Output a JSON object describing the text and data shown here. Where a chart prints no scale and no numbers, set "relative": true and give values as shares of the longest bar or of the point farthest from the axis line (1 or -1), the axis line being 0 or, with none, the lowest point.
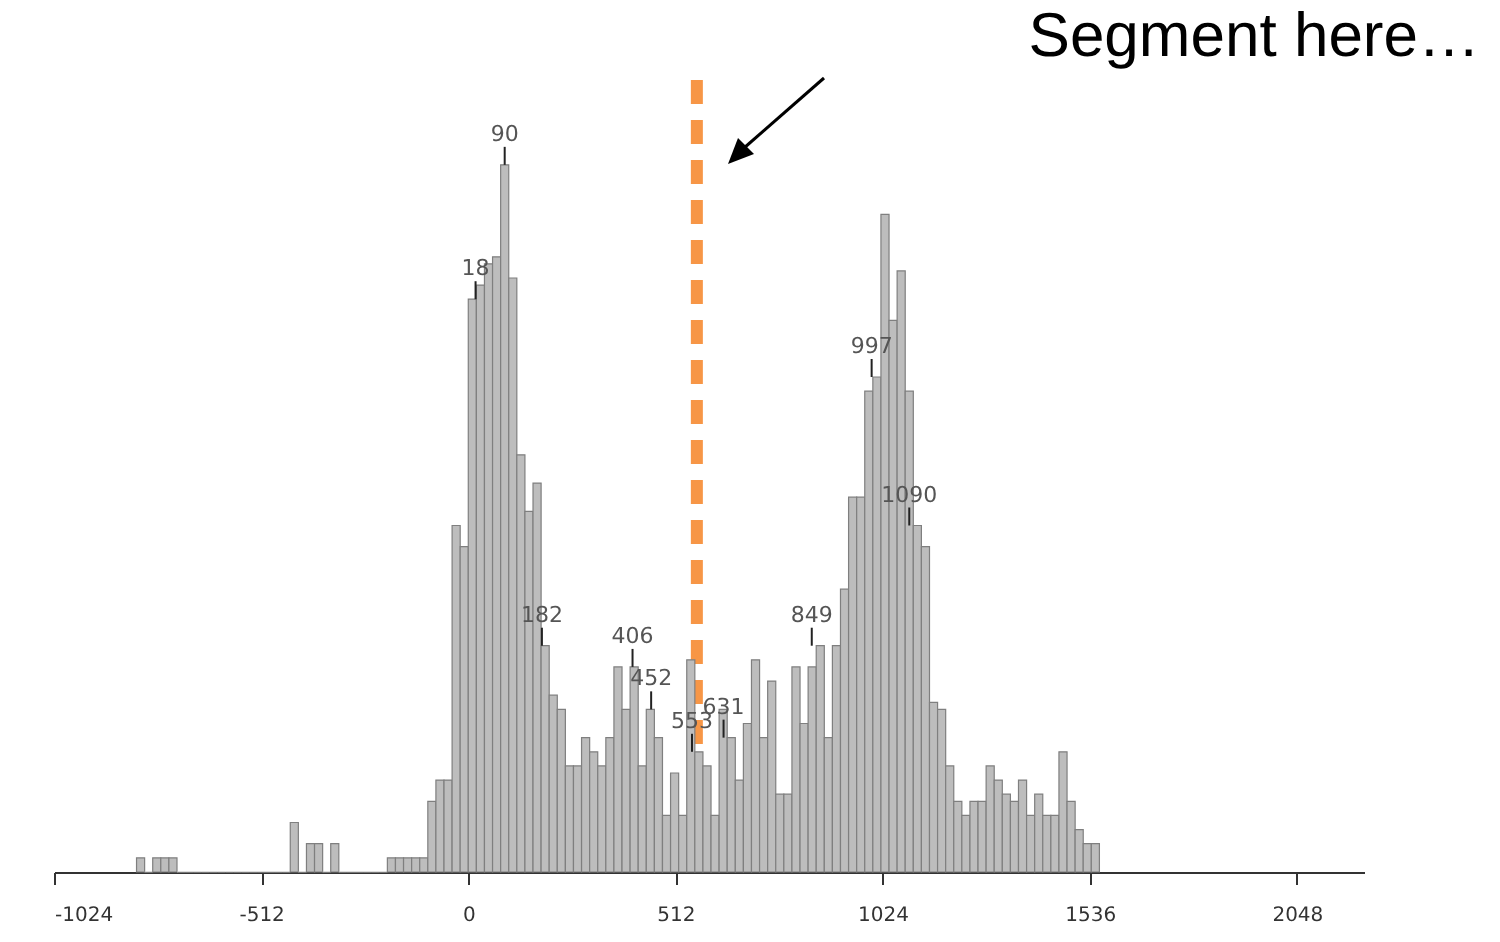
{
  "chart_data": {
    "type": "bar",
    "relative": true,
    "color": "#bdbdbd",
    "x": [
      -810,
      -790,
      -770,
      -750,
      -730,
      -710,
      -690,
      -670,
      -650,
      -630,
      -610,
      -590,
      -570,
      -550,
      -530,
      -510,
      -490,
      -470,
      -450,
      -430,
      -410,
      -390,
      -370,
      -350,
      -330,
      -310,
      -290,
      -270,
      -250,
      -230,
      -210,
      -190,
      -170,
      -150,
      -130,
      -110,
      -90,
      -70,
      -50,
      -30,
      -10,
      10,
      30,
      50,
      70,
      90,
      110,
      130,
      150,
      170,
      190,
      210,
      230,
      250,
      270,
      290,
      310,
      330,
      350,
      370,
      390,
      410,
      430,
      450,
      470,
      490,
      510,
      530,
      550,
      570,
      590,
      610,
      630,
      650,
      670,
      690,
      710,
      730,
      750,
      770,
      790,
      810,
      830,
      850,
      870,
      890,
      910,
      930,
      950,
      970,
      990,
      1010,
      1030,
      1050,
      1070,
      1090,
      1110,
      1130,
      1150,
      1170,
      1190,
      1210,
      1230,
      1250,
      1270,
      1290,
      1310,
      1330,
      1350,
      1370,
      1390,
      1410,
      1430,
      1450,
      1470,
      1490,
      1510,
      1530,
      1550
    ],
    "values": [
      0.02,
      0,
      0.02,
      0.02,
      0.02,
      0,
      0,
      0,
      0,
      0,
      0,
      0,
      0,
      0,
      0,
      0,
      0,
      0,
      0,
      0.07,
      0,
      0.04,
      0.04,
      0,
      0.04,
      0,
      0,
      0,
      0,
      0,
      0,
      0.02,
      0.02,
      0.02,
      0.02,
      0.02,
      0.1,
      0.13,
      0.13,
      0.49,
      0.46,
      0.81,
      0.83,
      0.86,
      0.87,
      1,
      0.84,
      0.59,
      0.51,
      0.55,
      0.32,
      0.25,
      0.23,
      0.15,
      0.15,
      0.19,
      0.17,
      0.15,
      0.19,
      0.29,
      0.23,
      0.29,
      0.15,
      0.23,
      0.19,
      0.08,
      0.14,
      0.08,
      0.3,
      0.17,
      0.15,
      0.08,
      0.23,
      0.19,
      0.13,
      0.21,
      0.3,
      0.19,
      0.27,
      0.11,
      0.11,
      0.29,
      0.21,
      0.29,
      0.32,
      0.19,
      0.32,
      0.4,
      0.53,
      0.53,
      0.68,
      0.7,
      0.93,
      0.78,
      0.85,
      0.68,
      0.49,
      0.46,
      0.24,
      0.23,
      0.15,
      0.1,
      0.08,
      0.1,
      0.1,
      0.15,
      0.13,
      0.11,
      0.1,
      0.13,
      0.08,
      0.11,
      0.08,
      0.08,
      0.17,
      0.1,
      0.06,
      0.04,
      0.04
    ],
    "xlim": [
      -1024,
      2214
    ],
    "xticks": [
      -1024,
      -512,
      0,
      512,
      1024,
      1536,
      2048
    ],
    "ref_lines": [
      {
        "axis": "x",
        "value": 565,
        "color": "#f79646",
        "line_style": "dashed"
      }
    ],
    "annotations": [
      "Segment here…",
      {
        "text": "90",
        "x": 90,
        "y": 1
      },
      {
        "text": "18",
        "x": 18,
        "y": 0.81
      },
      {
        "text": "182",
        "x": 182,
        "y": 0.32
      },
      {
        "text": "406",
        "x": 406,
        "y": 0.29
      },
      {
        "text": "452",
        "x": 452,
        "y": 0.23
      },
      {
        "text": "553",
        "x": 553,
        "y": 0.17
      },
      {
        "text": "631",
        "x": 631,
        "y": 0.19
      },
      {
        "text": "849",
        "x": 849,
        "y": 0.32
      },
      {
        "text": "997",
        "x": 997,
        "y": 0.7
      },
      {
        "text": "1090",
        "x": 1090,
        "y": 0.49
      }
    ]
  }
}
